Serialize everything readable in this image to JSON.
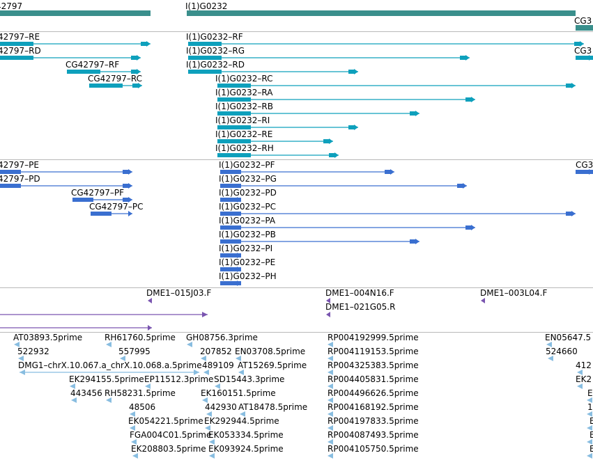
{
  "tracks": {
    "genes": {
      "features": [
        {
          "name": "CG42797",
          "label": "42797"
        },
        {
          "name": "I(1)G0232",
          "label": "I(1)G0232"
        },
        {
          "name": "CG3",
          "label": "CG3"
        }
      ]
    },
    "transcripts": {
      "features": [
        {
          "name": "CG42797-RE",
          "label": "42797–RE"
        },
        {
          "name": "CG42797-RD",
          "label": "42797–RD"
        },
        {
          "name": "CG42797-RF",
          "label": "CG42797–RF"
        },
        {
          "name": "CG42797-RC",
          "label": "CG42797–RC"
        },
        {
          "name": "I(1)G0232-RF",
          "label": "I(1)G0232–RF"
        },
        {
          "name": "I(1)G0232-RG",
          "label": "I(1)G0232–RG"
        },
        {
          "name": "I(1)G0232-RD",
          "label": "I(1)G0232–RD"
        },
        {
          "name": "I(1)G0232-RC",
          "label": "I(1)G0232–RC"
        },
        {
          "name": "I(1)G0232-RA",
          "label": "I(1)G0232–RA"
        },
        {
          "name": "I(1)G0232-RB",
          "label": "I(1)G0232–RB"
        },
        {
          "name": "I(1)G0232-RI",
          "label": "I(1)G0232–RI"
        },
        {
          "name": "I(1)G0232-RE",
          "label": "I(1)G0232–RE"
        },
        {
          "name": "I(1)G0232-RH",
          "label": "I(1)G0232–RH"
        },
        {
          "name": "CG3-right",
          "label": "CG3"
        }
      ]
    },
    "proteins": {
      "features": [
        {
          "name": "CG42797-PE",
          "label": "42797–PE"
        },
        {
          "name": "CG42797-PD",
          "label": "42797–PD"
        },
        {
          "name": "CG42797-PF",
          "label": "CG42797–PF"
        },
        {
          "name": "CG42797-PC",
          "label": "CG42797–PC"
        },
        {
          "name": "I(1)G0232-PF",
          "label": "I(1)G0232–PF"
        },
        {
          "name": "I(1)G0232-PG",
          "label": "I(1)G0232–PG"
        },
        {
          "name": "I(1)G0232-PD",
          "label": "I(1)G0232–PD"
        },
        {
          "name": "I(1)G0232-PC",
          "label": "I(1)G0232–PC"
        },
        {
          "name": "I(1)G0232-PA",
          "label": "I(1)G0232–PA"
        },
        {
          "name": "I(1)G0232-PB",
          "label": "I(1)G0232–PB"
        },
        {
          "name": "I(1)G0232-PI",
          "label": "I(1)G0232–PI"
        },
        {
          "name": "I(1)G0232-PE",
          "label": "I(1)G0232–PE"
        },
        {
          "name": "I(1)G0232-PH",
          "label": "I(1)G0232–PH"
        },
        {
          "name": "CG3-protein-right",
          "label": "CG3"
        }
      ]
    },
    "clones": {
      "features": [
        {
          "name": "DME1-015J03.F",
          "label": "DME1–015J03.F"
        },
        {
          "name": "DME1-004N16.F",
          "label": "DME1–004N16.F"
        },
        {
          "name": "DME1-021G05.R",
          "label": "DME1–021G05.R"
        },
        {
          "name": "DME1-003L04.F",
          "label": "DME1–003L04.F"
        }
      ]
    },
    "ests": {
      "features": [
        {
          "name": "AT03893.5prime",
          "label": "AT03893.5prime"
        },
        {
          "name": "522932",
          "label": "522932"
        },
        {
          "name": "DMG1-chrX.10.067.a_chrX.10.068.a.5prime",
          "label": "DMG1–chrX.10.067.a_chrX.10.068.a.5prime"
        },
        {
          "name": "EK294155.5prime",
          "label": "EK294155.5prime"
        },
        {
          "name": "443456",
          "label": "443456"
        },
        {
          "name": "RH61760.5prime",
          "label": "RH61760.5prime"
        },
        {
          "name": "557995",
          "label": "557995"
        },
        {
          "name": "EP11512.3prime",
          "label": "EP11512.3prime"
        },
        {
          "name": "RH58231.5prime",
          "label": "RH58231.5prime"
        },
        {
          "name": "48506",
          "label": "48506"
        },
        {
          "name": "EK054221.5prime",
          "label": "EK054221.5prime"
        },
        {
          "name": "FGA004C01.5prime",
          "label": "FGA004C01.5prime"
        },
        {
          "name": "EK208803.5prime",
          "label": "EK208803.5prime"
        },
        {
          "name": "GH08756.3prime",
          "label": "GH08756.3prime"
        },
        {
          "name": "207852",
          "label": "207852"
        },
        {
          "name": "489109",
          "label": "489109"
        },
        {
          "name": "SD15443.3prime",
          "label": "SD15443.3prime"
        },
        {
          "name": "EK160151.5prime",
          "label": "EK160151.5prime"
        },
        {
          "name": "442930",
          "label": "442930"
        },
        {
          "name": "EK292944.5prime",
          "label": "EK292944.5prime"
        },
        {
          "name": "EK053334.5prime",
          "label": "EK053334.5prime"
        },
        {
          "name": "EK093924.5prime",
          "label": "EK093924.5prime"
        },
        {
          "name": "EN03708.5prime",
          "label": "EN03708.5prime"
        },
        {
          "name": "AT15269.5prime",
          "label": "AT15269.5prime"
        },
        {
          "name": "AT18478.5prime",
          "label": "AT18478.5prime"
        },
        {
          "name": "RP004192999.5prime",
          "label": "RP004192999.5prime"
        },
        {
          "name": "RP004119153.5prime",
          "label": "RP004119153.5prime"
        },
        {
          "name": "RP004325383.5prime",
          "label": "RP004325383.5prime"
        },
        {
          "name": "RP004405831.5prime",
          "label": "RP004405831.5prime"
        },
        {
          "name": "RP004496626.5prime",
          "label": "RP004496626.5prime"
        },
        {
          "name": "RP004168192.5prime",
          "label": "RP004168192.5prime"
        },
        {
          "name": "RP004197833.5prime",
          "label": "RP004197833.5prime"
        },
        {
          "name": "RP004087493.5prime",
          "label": "RP004087493.5prime"
        },
        {
          "name": "RP004105750.5prime",
          "label": "RP004105750.5prime"
        },
        {
          "name": "EN05647",
          "label": "EN05647.5"
        },
        {
          "name": "524660",
          "label": "524660"
        },
        {
          "name": "412-cut",
          "label": "412"
        },
        {
          "name": "EK2-cut",
          "label": "EK2"
        },
        {
          "name": "E-cut-1",
          "label": "E"
        },
        {
          "name": "1-cut",
          "label": "1"
        },
        {
          "name": "E-cut-2",
          "label": "E"
        },
        {
          "name": "E-cut-3",
          "label": "E"
        },
        {
          "name": "E-cut-4",
          "label": "E"
        }
      ]
    }
  },
  "colors": {
    "gene": "#3a8f8c",
    "transcript": "#0ea0bc",
    "protein": "#3a6fd0",
    "clone": "#7a55b0",
    "est": "#88bde0",
    "divider": "#b8b8b8",
    "label": "#000000"
  }
}
